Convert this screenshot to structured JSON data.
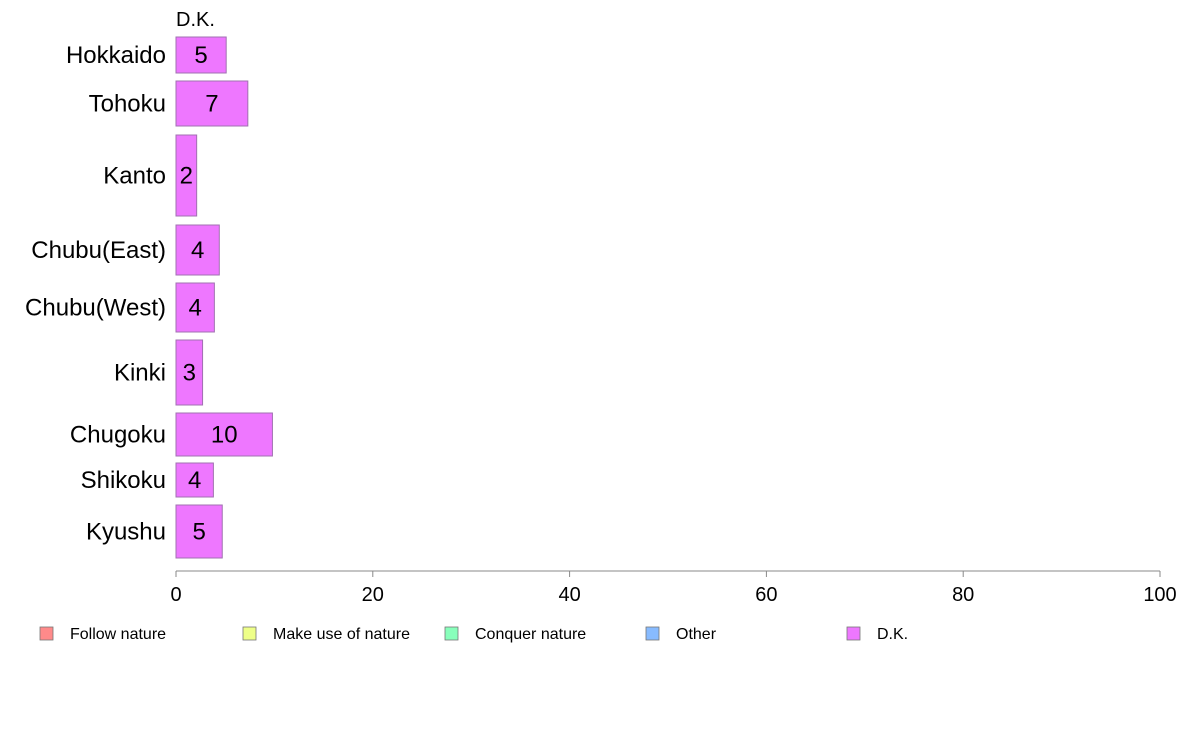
{
  "chart_data": {
    "type": "bar",
    "orientation": "horizontal",
    "panel_title": "D.K.",
    "categories": [
      "Hokkaido",
      "Tohoku",
      "Kanto",
      "Chubu(East)",
      "Chubu(West)",
      "Kinki",
      "Chugoku",
      "Shikoku",
      "Kyushu"
    ],
    "series": [
      {
        "name": "D.K.",
        "color": "#ee77ff",
        "values": [
          5.1,
          7.3,
          2.1,
          4.4,
          3.9,
          2.7,
          9.8,
          3.8,
          4.7
        ],
        "labels": [
          "5",
          "7",
          "2",
          "4",
          "4",
          "3",
          "10",
          "4",
          "5"
        ]
      }
    ],
    "xlim": [
      0,
      100
    ],
    "xticks": [
      0,
      20,
      40,
      60,
      80,
      100
    ],
    "xlabel": "",
    "ylabel": "",
    "grid": false,
    "legend_position": "bottom",
    "legend": [
      {
        "label": "Follow nature",
        "color": "#ff8a8a"
      },
      {
        "label": "Make use of nature",
        "color": "#eeff88"
      },
      {
        "label": "Conquer nature",
        "color": "#88ffbb"
      },
      {
        "label": "Other",
        "color": "#88bbff"
      },
      {
        "label": "D.K.",
        "color": "#ee77ff"
      }
    ]
  }
}
